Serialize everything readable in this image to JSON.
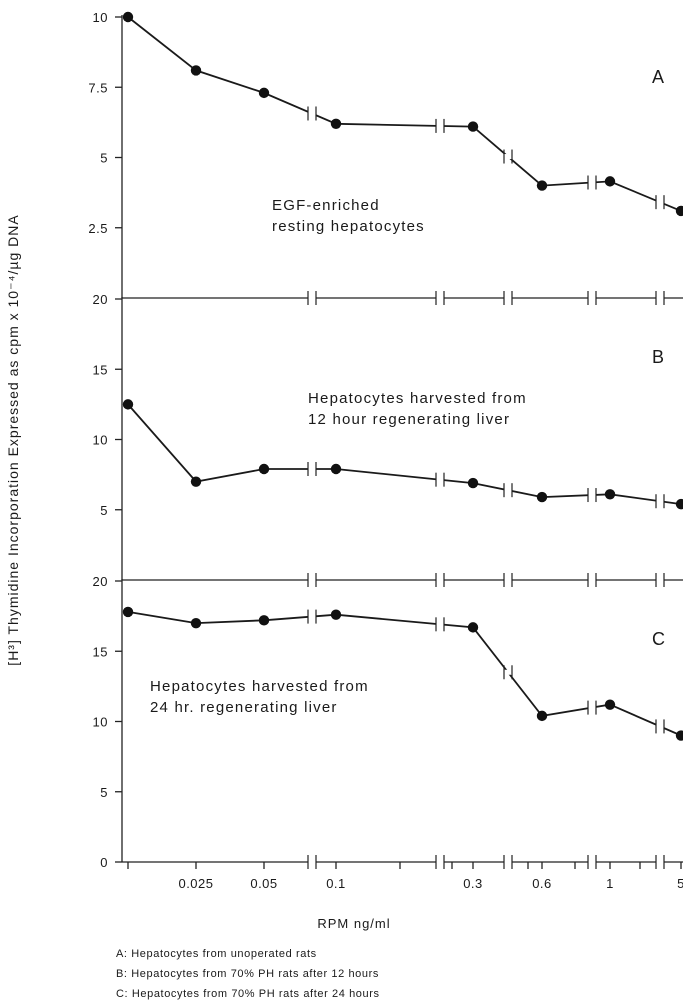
{
  "chart_data": {
    "type": "line",
    "y_axis_title": "[H³] Thymidine Incorporation Expressed as cpm x 10⁻⁴/µg DNA",
    "x_axis_title": "RPM ng/ml",
    "x_tick_labels": [
      "0.025",
      "0.05",
      "0.1",
      "0.3",
      "0.6",
      "1",
      "5"
    ],
    "panels": [
      {
        "id": "A",
        "letter": "A",
        "annotation": [
          "EGF-enriched",
          "resting hepatocytes"
        ],
        "ylim": [
          0,
          10
        ],
        "y_ticks": [
          2.5,
          5,
          7.5,
          10
        ],
        "y_tick_labels": [
          "2.5",
          "5",
          "7.5",
          "10"
        ],
        "points": [
          {
            "x": "0",
            "y": 10.0
          },
          {
            "x": "0.025",
            "y": 8.1
          },
          {
            "x": "0.05",
            "y": 7.3
          },
          {
            "x": "0.1",
            "y": 6.2
          },
          {
            "x": "0.3",
            "y": 6.1
          },
          {
            "x": "0.6",
            "y": 4.0
          },
          {
            "x": "1",
            "y": 4.15
          },
          {
            "x": "5",
            "y": 3.1
          }
        ]
      },
      {
        "id": "B",
        "letter": "B",
        "annotation": [
          "Hepatocytes harvested from",
          "12 hour regenerating liver"
        ],
        "ylim": [
          0,
          20
        ],
        "y_ticks": [
          5,
          10,
          15,
          20
        ],
        "y_tick_labels": [
          "5",
          "10",
          "15",
          "20"
        ],
        "points": [
          {
            "x": "0",
            "y": 12.5
          },
          {
            "x": "0.025",
            "y": 7.0
          },
          {
            "x": "0.05",
            "y": 7.9
          },
          {
            "x": "0.1",
            "y": 7.9
          },
          {
            "x": "0.3",
            "y": 6.9
          },
          {
            "x": "0.6",
            "y": 5.9
          },
          {
            "x": "1",
            "y": 6.1
          },
          {
            "x": "5",
            "y": 5.4
          }
        ]
      },
      {
        "id": "C",
        "letter": "C",
        "annotation": [
          "Hepatocytes harvested from",
          "24 hr. regenerating liver"
        ],
        "ylim": [
          0,
          20
        ],
        "y_ticks": [
          0,
          5,
          10,
          15,
          20
        ],
        "y_tick_labels": [
          "0",
          "5",
          "10",
          "15",
          "20"
        ],
        "points": [
          {
            "x": "0",
            "y": 17.8
          },
          {
            "x": "0.025",
            "y": 17.0
          },
          {
            "x": "0.05",
            "y": 17.2
          },
          {
            "x": "0.1",
            "y": 17.6
          },
          {
            "x": "0.3",
            "y": 16.7
          },
          {
            "x": "0.6",
            "y": 10.4
          },
          {
            "x": "1",
            "y": 11.2
          },
          {
            "x": "5",
            "y": 9.0
          }
        ]
      }
    ],
    "legend": [
      "A:  Hepatocytes from unoperated rats",
      "B:  Hepatocytes from 70% PH rats after 12 hours",
      "C:  Hepatocytes from 70% PH rats after 24 hours"
    ],
    "grid": false
  }
}
